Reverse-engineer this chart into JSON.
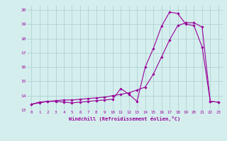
{
  "xlabel": "Windchill (Refroidissement éolien,°C)",
  "x_values": [
    0,
    1,
    2,
    3,
    4,
    5,
    6,
    7,
    8,
    9,
    10,
    11,
    12,
    13,
    14,
    15,
    16,
    17,
    18,
    19,
    20,
    21,
    22,
    23
  ],
  "line1_y": [
    13.4,
    13.55,
    13.6,
    13.6,
    13.55,
    13.5,
    13.55,
    13.6,
    13.65,
    13.7,
    13.75,
    14.5,
    14.1,
    13.6,
    16.0,
    17.3,
    18.85,
    19.85,
    19.75,
    19.0,
    18.9,
    17.4,
    13.6,
    13.55
  ],
  "line2_y": [
    13.4,
    13.5,
    13.6,
    13.65,
    13.7,
    13.7,
    13.75,
    13.8,
    13.85,
    13.9,
    14.0,
    14.1,
    14.2,
    14.4,
    14.6,
    15.5,
    16.7,
    17.9,
    18.9,
    19.1,
    19.1,
    18.8,
    13.6,
    13.55
  ],
  "line_color": "#990099",
  "bg_color": "#d4eeee",
  "grid_color": "#aacccc",
  "ylim_min": 13.0,
  "ylim_max": 20.3,
  "xlim_min": -0.5,
  "xlim_max": 23.5,
  "yticks": [
    13,
    14,
    15,
    16,
    17,
    18,
    19,
    20
  ],
  "xticks": [
    0,
    1,
    2,
    3,
    4,
    5,
    6,
    7,
    8,
    9,
    10,
    11,
    12,
    13,
    14,
    15,
    16,
    17,
    18,
    19,
    20,
    21,
    22,
    23
  ]
}
